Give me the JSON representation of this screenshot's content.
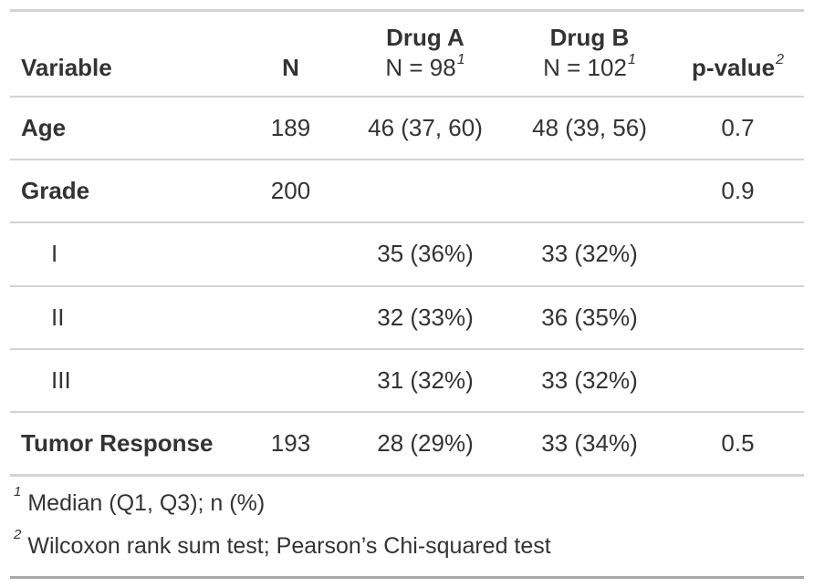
{
  "table": {
    "columns": [
      {
        "label": "Variable"
      },
      {
        "label": "N"
      },
      {
        "label": "Drug A",
        "sublabel": "N = 98",
        "superscript": "1"
      },
      {
        "label": "Drug B",
        "sublabel": "N = 102",
        "superscript": "1"
      },
      {
        "label": "p-value",
        "superscript": "2"
      }
    ],
    "rows": [
      {
        "variable": "Age",
        "n": "189",
        "drug_a": "46 (37, 60)",
        "drug_b": "48 (39, 56)",
        "p": "0.7"
      },
      {
        "variable": "Grade",
        "n": "200",
        "drug_a": "",
        "drug_b": "",
        "p": "0.9"
      },
      {
        "variable": "I",
        "n": "",
        "drug_a": "35 (36%)",
        "drug_b": "33 (32%)",
        "p": ""
      },
      {
        "variable": "II",
        "n": "",
        "drug_a": "32 (33%)",
        "drug_b": "36 (35%)",
        "p": ""
      },
      {
        "variable": "III",
        "n": "",
        "drug_a": "31 (32%)",
        "drug_b": "33 (32%)",
        "p": ""
      },
      {
        "variable": "Tumor Response",
        "n": "193",
        "drug_a": "28 (29%)",
        "drug_b": "33 (34%)",
        "p": "0.5"
      }
    ],
    "footnotes": [
      {
        "mark": "1",
        "text": "Median (Q1, Q3); n (%)"
      },
      {
        "mark": "2",
        "text": "Wilcoxon rank sum test; Pearson’s Chi-squared test"
      }
    ],
    "colors": {
      "text": "#333333",
      "rule_light": "#d3d3d3",
      "rule_dark": "#a8a8a8",
      "background": "#ffffff"
    }
  }
}
